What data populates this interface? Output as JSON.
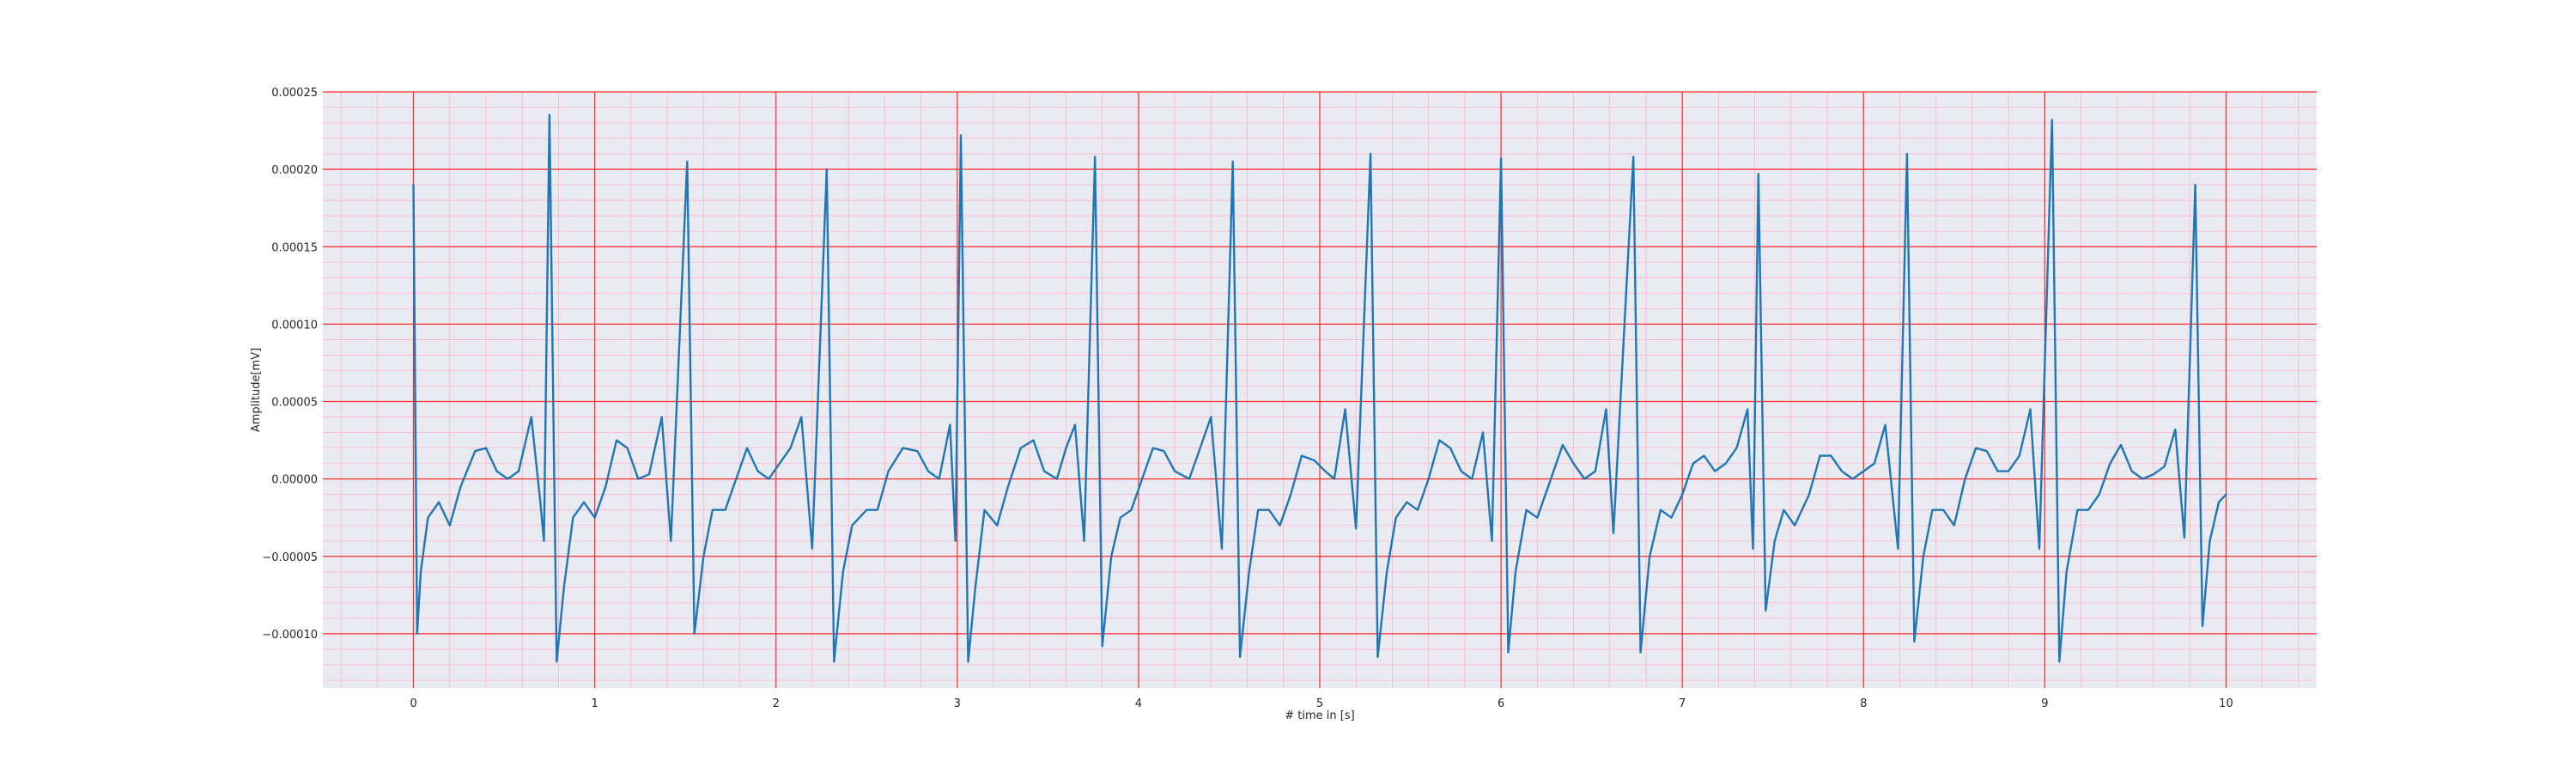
{
  "chart_data": {
    "type": "line",
    "title": "",
    "xlabel": "# time in [s]",
    "ylabel": "Amplitude[mV]",
    "xlim": [
      -0.5,
      10.5
    ],
    "ylim": [
      -0.000135,
      0.00025
    ],
    "x_ticks": [
      0,
      1,
      2,
      3,
      4,
      5,
      6,
      7,
      8,
      9,
      10
    ],
    "x_tick_labels": [
      "0",
      "1",
      "2",
      "3",
      "4",
      "5",
      "6",
      "7",
      "8",
      "9",
      "10"
    ],
    "y_ticks": [
      -0.0001,
      -5e-05,
      0,
      5e-05,
      0.0001,
      0.00015,
      0.0002,
      0.00025
    ],
    "y_tick_labels": [
      "−0.00010",
      "−0.00005",
      "0.00000",
      "0.00005",
      "0.00010",
      "0.00015",
      "0.00020",
      "0.00025"
    ],
    "grid": true,
    "colors": {
      "background": "#eaeaf2",
      "major_grid": "#ff2a2a",
      "minor_grid": "#ffb3c6",
      "series": "#1f77b4"
    },
    "series": [
      {
        "points": [
          [
            0.0,
            0.00019
          ],
          [
            0.02,
            -0.0001
          ],
          [
            0.04,
            -6e-05
          ],
          [
            0.08,
            -2.5e-05
          ],
          [
            0.14,
            -1.5e-05
          ],
          [
            0.2,
            -3e-05
          ],
          [
            0.26,
            -5e-06
          ],
          [
            0.34,
            1.8e-05
          ],
          [
            0.4,
            2e-05
          ],
          [
            0.46,
            5e-06
          ],
          [
            0.52,
            0.0
          ],
          [
            0.58,
            5e-06
          ],
          [
            0.65,
            4e-05
          ],
          [
            0.7,
            -1.5e-05
          ],
          [
            0.72,
            -4e-05
          ],
          [
            0.75,
            0.000235
          ],
          [
            0.79,
            -0.000118
          ],
          [
            0.83,
            -7e-05
          ],
          [
            0.88,
            -2.5e-05
          ],
          [
            0.94,
            -1.5e-05
          ],
          [
            1.0,
            -2.5e-05
          ],
          [
            1.06,
            -5e-06
          ],
          [
            1.12,
            2.5e-05
          ],
          [
            1.18,
            2e-05
          ],
          [
            1.24,
            0.0
          ],
          [
            1.3,
            3e-06
          ],
          [
            1.37,
            4e-05
          ],
          [
            1.42,
            -4e-05
          ],
          [
            1.51,
            0.000205
          ],
          [
            1.55,
            -0.0001
          ],
          [
            1.6,
            -5e-05
          ],
          [
            1.65,
            -2e-05
          ],
          [
            1.72,
            -2e-05
          ],
          [
            1.78,
            0.0
          ],
          [
            1.84,
            2e-05
          ],
          [
            1.9,
            5e-06
          ],
          [
            1.96,
            0.0
          ],
          [
            2.02,
            1e-05
          ],
          [
            2.08,
            2e-05
          ],
          [
            2.14,
            4e-05
          ],
          [
            2.2,
            -4.5e-05
          ],
          [
            2.28,
            0.0002
          ],
          [
            2.32,
            -0.000118
          ],
          [
            2.37,
            -6e-05
          ],
          [
            2.42,
            -3e-05
          ],
          [
            2.5,
            -2e-05
          ],
          [
            2.56,
            -2e-05
          ],
          [
            2.62,
            5e-06
          ],
          [
            2.7,
            2e-05
          ],
          [
            2.78,
            1.8e-05
          ],
          [
            2.84,
            5e-06
          ],
          [
            2.9,
            0.0
          ],
          [
            2.96,
            3.5e-05
          ],
          [
            2.99,
            -4e-05
          ],
          [
            3.02,
            0.000222
          ],
          [
            3.06,
            -0.000118
          ],
          [
            3.1,
            -7e-05
          ],
          [
            3.15,
            -2e-05
          ],
          [
            3.22,
            -3e-05
          ],
          [
            3.28,
            -5e-06
          ],
          [
            3.35,
            2e-05
          ],
          [
            3.42,
            2.5e-05
          ],
          [
            3.48,
            5e-06
          ],
          [
            3.55,
            0.0
          ],
          [
            3.6,
            2e-05
          ],
          [
            3.65,
            3.5e-05
          ],
          [
            3.7,
            -4e-05
          ],
          [
            3.76,
            0.000208
          ],
          [
            3.8,
            -0.000108
          ],
          [
            3.85,
            -5e-05
          ],
          [
            3.9,
            -2.5e-05
          ],
          [
            3.96,
            -2e-05
          ],
          [
            4.02,
            0.0
          ],
          [
            4.08,
            2e-05
          ],
          [
            4.14,
            1.8e-05
          ],
          [
            4.2,
            5e-06
          ],
          [
            4.28,
            0.0
          ],
          [
            4.34,
            2e-05
          ],
          [
            4.4,
            4e-05
          ],
          [
            4.46,
            -4.5e-05
          ],
          [
            4.52,
            0.000205
          ],
          [
            4.56,
            -0.000115
          ],
          [
            4.61,
            -6e-05
          ],
          [
            4.66,
            -2e-05
          ],
          [
            4.72,
            -2e-05
          ],
          [
            4.78,
            -3e-05
          ],
          [
            4.84,
            -1e-05
          ],
          [
            4.9,
            1.5e-05
          ],
          [
            4.97,
            1.2e-05
          ],
          [
            5.03,
            5e-06
          ],
          [
            5.08,
            0.0
          ],
          [
            5.14,
            4.5e-05
          ],
          [
            5.2,
            -3.2e-05
          ],
          [
            5.28,
            0.00021
          ],
          [
            5.32,
            -0.000115
          ],
          [
            5.37,
            -6e-05
          ],
          [
            5.42,
            -2.5e-05
          ],
          [
            5.48,
            -1.5e-05
          ],
          [
            5.54,
            -2e-05
          ],
          [
            5.6,
            0.0
          ],
          [
            5.66,
            2.5e-05
          ],
          [
            5.72,
            2e-05
          ],
          [
            5.78,
            5e-06
          ],
          [
            5.84,
            0.0
          ],
          [
            5.9,
            3e-05
          ],
          [
            5.95,
            -4e-05
          ],
          [
            6.0,
            0.000207
          ],
          [
            6.04,
            -0.000112
          ],
          [
            6.08,
            -6e-05
          ],
          [
            6.14,
            -2e-05
          ],
          [
            6.2,
            -2.5e-05
          ],
          [
            6.26,
            -5e-06
          ],
          [
            6.34,
            2.2e-05
          ],
          [
            6.4,
            1e-05
          ],
          [
            6.46,
            0.0
          ],
          [
            6.52,
            5e-06
          ],
          [
            6.58,
            4.5e-05
          ],
          [
            6.62,
            -3.5e-05
          ],
          [
            6.73,
            0.000208
          ],
          [
            6.77,
            -0.000112
          ],
          [
            6.82,
            -5e-05
          ],
          [
            6.88,
            -2e-05
          ],
          [
            6.94,
            -2.5e-05
          ],
          [
            7.0,
            -1e-05
          ],
          [
            7.06,
            1e-05
          ],
          [
            7.12,
            1.5e-05
          ],
          [
            7.18,
            5e-06
          ],
          [
            7.24,
            1e-05
          ],
          [
            7.3,
            2e-05
          ],
          [
            7.36,
            4.5e-05
          ],
          [
            7.39,
            -4.5e-05
          ],
          [
            7.42,
            0.000197
          ],
          [
            7.46,
            -8.5e-05
          ],
          [
            7.51,
            -4e-05
          ],
          [
            7.56,
            -2e-05
          ],
          [
            7.62,
            -3e-05
          ],
          [
            7.7,
            -1e-05
          ],
          [
            7.76,
            1.5e-05
          ],
          [
            7.82,
            1.5e-05
          ],
          [
            7.88,
            5e-06
          ],
          [
            7.94,
            0.0
          ],
          [
            8.0,
            5e-06
          ],
          [
            8.06,
            1e-05
          ],
          [
            8.12,
            3.5e-05
          ],
          [
            8.19,
            -4.5e-05
          ],
          [
            8.24,
            0.00021
          ],
          [
            8.28,
            -0.000105
          ],
          [
            8.33,
            -5e-05
          ],
          [
            8.38,
            -2e-05
          ],
          [
            8.44,
            -2e-05
          ],
          [
            8.5,
            -3e-05
          ],
          [
            8.56,
            0.0
          ],
          [
            8.62,
            2e-05
          ],
          [
            8.68,
            1.8e-05
          ],
          [
            8.74,
            5e-06
          ],
          [
            8.8,
            5e-06
          ],
          [
            8.86,
            1.5e-05
          ],
          [
            8.92,
            4.5e-05
          ],
          [
            8.97,
            -4.5e-05
          ],
          [
            9.04,
            0.000232
          ],
          [
            9.08,
            -0.000118
          ],
          [
            9.12,
            -6e-05
          ],
          [
            9.18,
            -2e-05
          ],
          [
            9.24,
            -2e-05
          ],
          [
            9.3,
            -1e-05
          ],
          [
            9.36,
            1e-05
          ],
          [
            9.42,
            2.2e-05
          ],
          [
            9.48,
            5e-06
          ],
          [
            9.54,
            0.0
          ],
          [
            9.6,
            3e-06
          ],
          [
            9.66,
            8e-06
          ],
          [
            9.72,
            3.2e-05
          ],
          [
            9.77,
            -3.8e-05
          ],
          [
            9.83,
            0.00019
          ],
          [
            9.87,
            -9.5e-05
          ],
          [
            9.91,
            -4e-05
          ],
          [
            9.96,
            -1.5e-05
          ],
          [
            10.0,
            -1e-05
          ]
        ]
      }
    ]
  }
}
